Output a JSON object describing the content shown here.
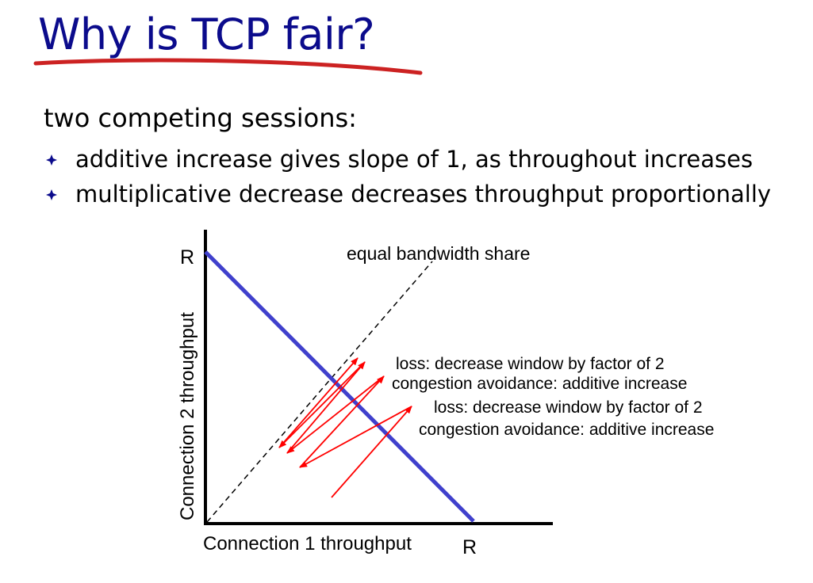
{
  "slide": {
    "title": "Why is TCP fair?",
    "subtitle": "two competing sessions:",
    "bullets": [
      "additive increase gives slope of 1, as throughout increases",
      "multiplicative decrease decreases throughput proportionally"
    ]
  },
  "diagram": {
    "y_axis_label": "Connection 2 throughput",
    "x_axis_label": "Connection 1 throughput",
    "y_max_label": "R",
    "x_max_label": "R",
    "equal_share_label": "equal bandwidth share",
    "annotations": [
      "loss: decrease window by factor of 2",
      "congestion avoidance: additive increase",
      "loss: decrease window by factor of 2",
      "congestion avoidance: additive increase"
    ],
    "colors": {
      "title": "#0b0b8c",
      "underline": "#cc2222",
      "capacity_line": "#4040cc",
      "arrows": "#ff0000"
    }
  }
}
